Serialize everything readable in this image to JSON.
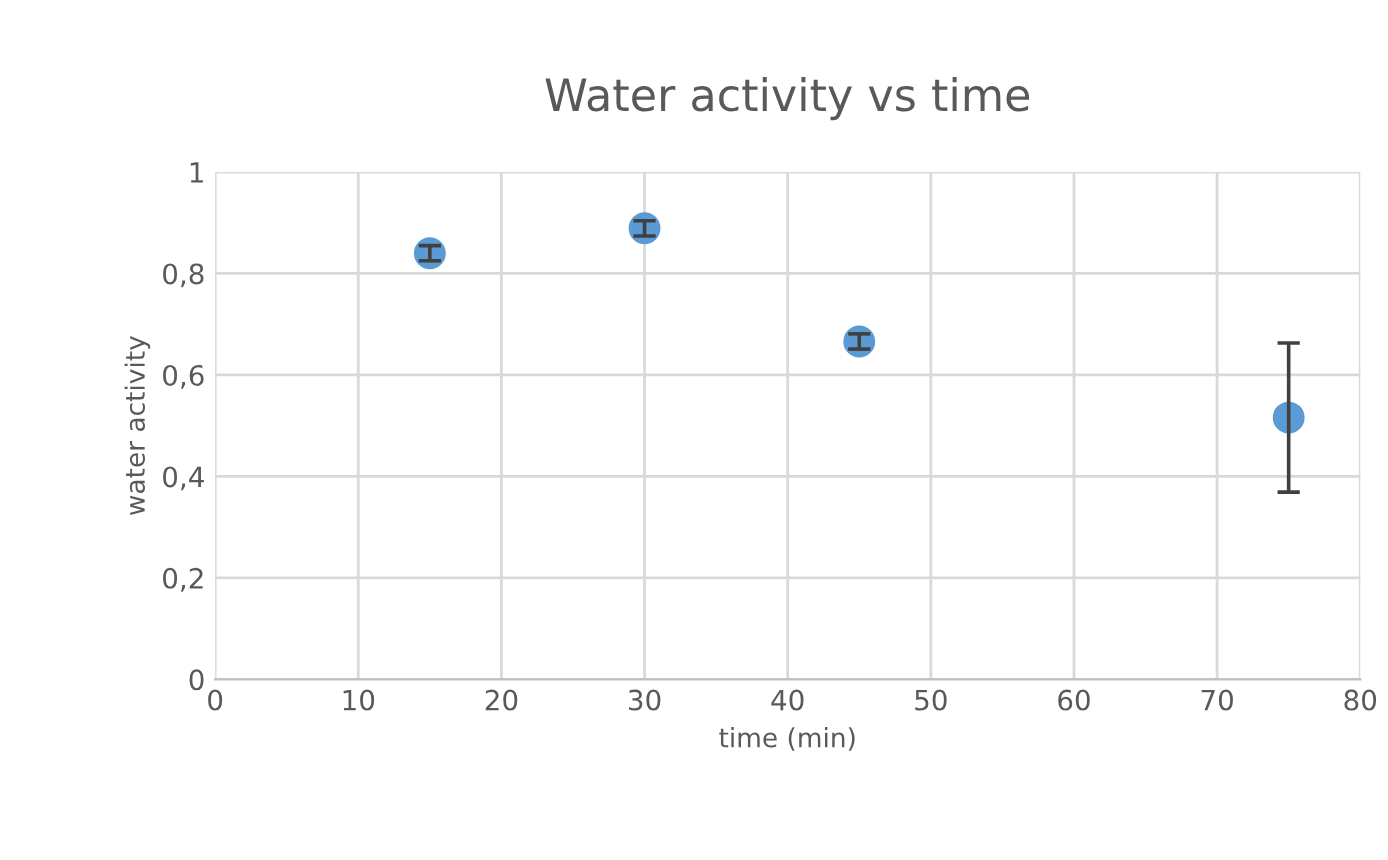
{
  "chart_data": {
    "type": "scatter",
    "title": "Water activity vs time",
    "xlabel": "time (min)",
    "ylabel": "water activity",
    "x": [
      15,
      30,
      45,
      75
    ],
    "series": [
      {
        "color": "#5b9bd5",
        "values": [
          0.84,
          0.889,
          0.666,
          0.516
        ],
        "errors": [
          0.015,
          0.015,
          0.015,
          0.147
        ]
      }
    ],
    "xlim": [
      0,
      80
    ],
    "xticks": [
      0,
      10,
      20,
      30,
      40,
      50,
      60,
      70,
      80
    ],
    "ylim": [
      0,
      1
    ],
    "yticks": [
      0,
      {
        "value": 0.2,
        "label": "0,2"
      },
      {
        "value": 0.4,
        "label": "0,4"
      },
      {
        "value": 0.6,
        "label": "0,6"
      },
      {
        "value": 0.8,
        "label": "0,8"
      },
      1
    ],
    "grid": true,
    "marker": "circle"
  }
}
